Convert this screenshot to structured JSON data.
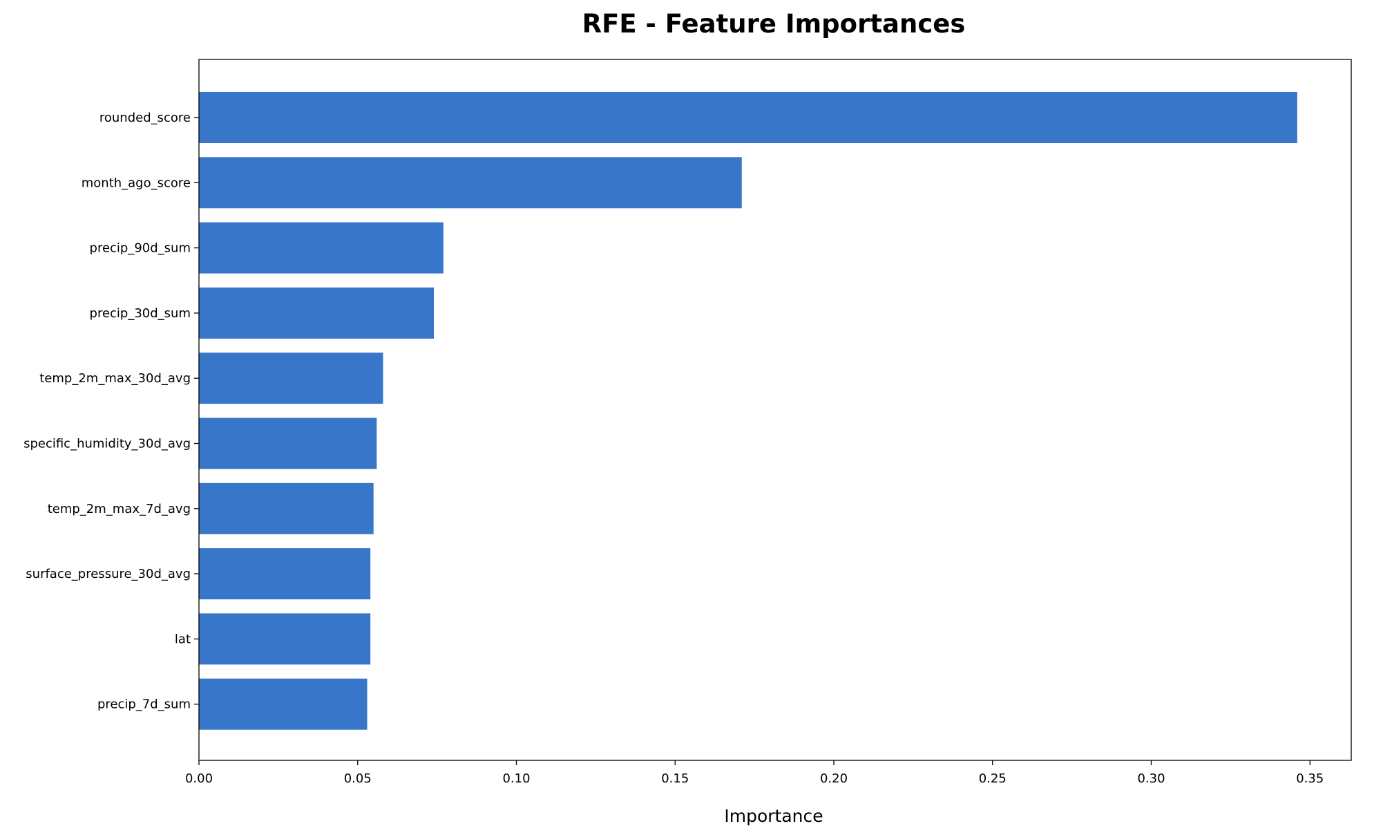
{
  "chart_data": {
    "type": "bar",
    "orientation": "horizontal",
    "title": "RFE - Feature Importances",
    "xlabel": "Importance",
    "ylabel": "",
    "xlim": [
      0,
      0.363
    ],
    "xticks": [
      "0.00",
      "0.05",
      "0.10",
      "0.15",
      "0.20",
      "0.25",
      "0.30",
      "0.35"
    ],
    "categories": [
      "rounded_score",
      "month_ago_score",
      "precip_90d_sum",
      "precip_30d_sum",
      "temp_2m_max_30d_avg",
      "specific_humidity_30d_avg",
      "temp_2m_max_7d_avg",
      "surface_pressure_30d_avg",
      "lat",
      "precip_7d_sum"
    ],
    "values": [
      0.346,
      0.171,
      0.077,
      0.074,
      0.058,
      0.056,
      0.055,
      0.054,
      0.054,
      0.053
    ],
    "bar_color": "#3776c9",
    "grid": false,
    "legend": "none"
  }
}
